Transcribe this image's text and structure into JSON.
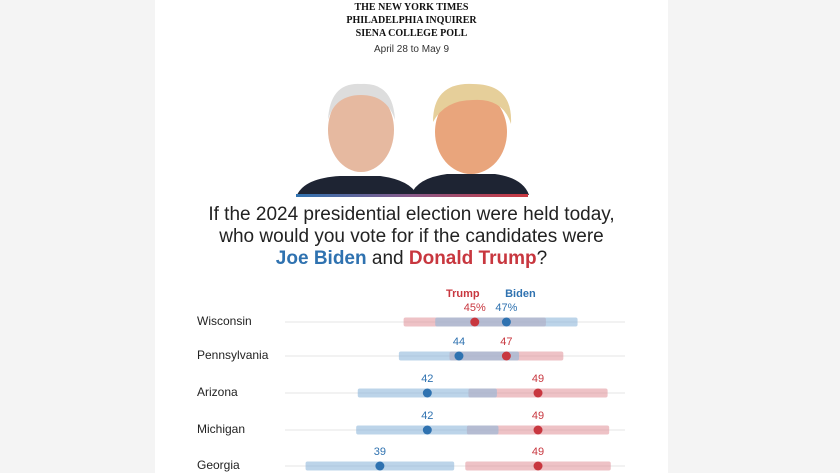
{
  "header": {
    "lines": [
      "THE NEW YORK TIMES",
      "PHILADELPHIA INQUIRER",
      "SIENA COLLEGE POLL"
    ],
    "dates": "April 28 to May 9"
  },
  "question": {
    "text": "If the 2024 presidential election were held today, who would you vote for if the candidates were",
    "candidate_1": "Joe Biden",
    "joiner": "and",
    "candidate_2": "Donald Trump",
    "end": "?"
  },
  "chart_data": {
    "type": "dot-range",
    "categories": [
      "Wisconsin",
      "Pennsylvania",
      "Arizona",
      "Michigan",
      "Georgia"
    ],
    "series": [
      {
        "name": "Trump",
        "color": "#c8373f",
        "range_color": "#e39aa0",
        "values": [
          45,
          47,
          49,
          49,
          49
        ],
        "value_labels": [
          "45%",
          "47",
          "49",
          "49",
          "49"
        ],
        "errors": [
          4.5,
          3.6,
          4.4,
          4.5,
          4.6
        ]
      },
      {
        "name": "Biden",
        "color": "#2f72b0",
        "range_color": "#8fb7da",
        "values": [
          47,
          44,
          42,
          42,
          39
        ],
        "value_labels": [
          "47%",
          "44",
          "42",
          "42",
          "39"
        ],
        "errors": [
          4.5,
          3.8,
          4.4,
          4.5,
          4.7
        ]
      }
    ],
    "xlim": [
      33,
      54.5
    ]
  }
}
